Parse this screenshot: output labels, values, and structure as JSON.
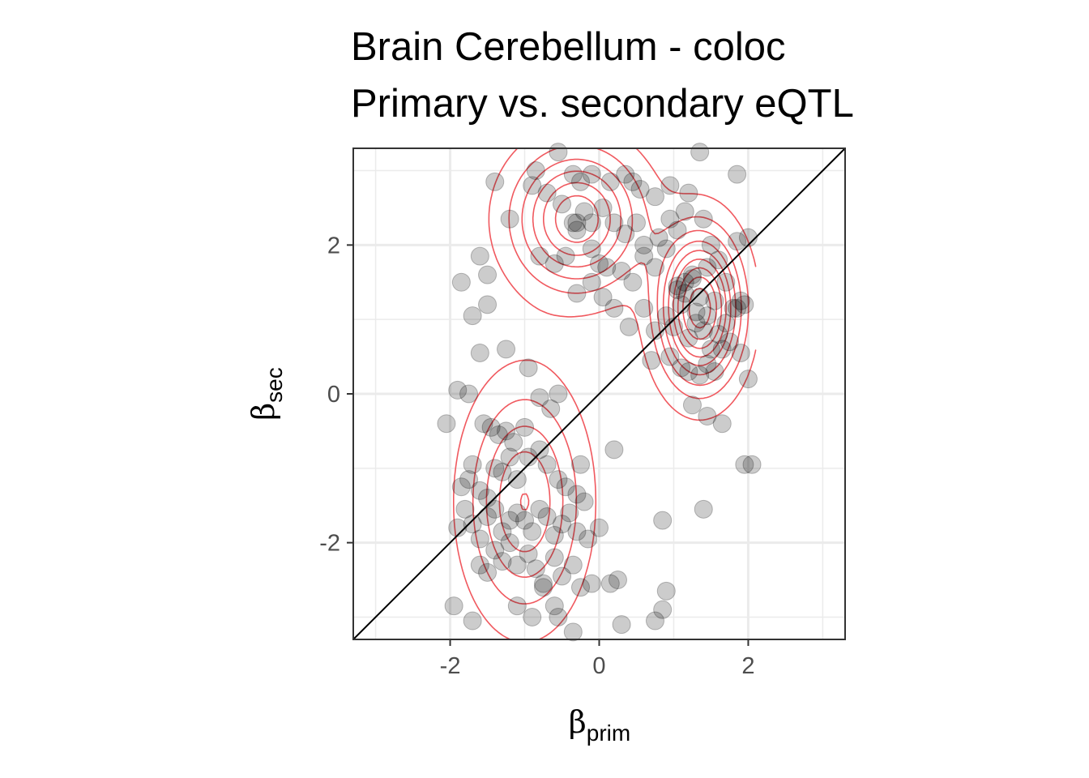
{
  "chart_data": {
    "type": "scatter",
    "title_lines": [
      "Brain Cerebellum - coloc",
      "Primary vs. secondary eQTL"
    ],
    "xlabel": {
      "symbol": "β",
      "subscript": "prim"
    },
    "ylabel": {
      "symbol": "β",
      "subscript": "sec"
    },
    "xlim": [
      -3.3,
      3.3
    ],
    "ylim": [
      -3.3,
      3.3
    ],
    "x_ticks": [
      -2,
      0,
      2
    ],
    "y_ticks": [
      -2,
      0,
      2
    ],
    "x_tick_labels": [
      "-2",
      "0",
      "2"
    ],
    "y_tick_labels": [
      "-2",
      "0",
      "2"
    ],
    "grid": true,
    "reference_line": {
      "slope": 1,
      "intercept": 0
    },
    "point_color": "#000000",
    "contour_color": "#f0595f",
    "density_modes": [
      {
        "x": -1.0,
        "y": -1.45,
        "sx": 0.48,
        "sy": 0.95
      },
      {
        "x": -0.3,
        "y": 2.35,
        "sx": 0.55,
        "sy": 0.6
      },
      {
        "x": 1.35,
        "y": 1.15,
        "sx": 0.35,
        "sy": 0.65
      }
    ],
    "points": [
      [
        -0.85,
        3.0
      ],
      [
        -0.55,
        3.25
      ],
      [
        -0.35,
        2.95
      ],
      [
        -0.25,
        2.85
      ],
      [
        -0.1,
        2.95
      ],
      [
        0.15,
        2.85
      ],
      [
        0.35,
        2.95
      ],
      [
        0.45,
        2.85
      ],
      [
        0.55,
        2.75
      ],
      [
        0.75,
        2.65
      ],
      [
        0.95,
        2.8
      ],
      [
        1.2,
        2.7
      ],
      [
        1.35,
        3.25
      ],
      [
        1.85,
        2.95
      ],
      [
        -1.4,
        2.85
      ],
      [
        -1.2,
        2.35
      ],
      [
        -0.9,
        2.8
      ],
      [
        -0.7,
        2.7
      ],
      [
        -0.5,
        2.55
      ],
      [
        -0.3,
        2.3
      ],
      [
        -0.2,
        2.45
      ],
      [
        -0.1,
        2.3
      ],
      [
        0.05,
        2.5
      ],
      [
        0.2,
        2.3
      ],
      [
        0.35,
        2.15
      ],
      [
        0.5,
        2.3
      ],
      [
        0.6,
        2.0
      ],
      [
        0.8,
        2.1
      ],
      [
        0.95,
        2.35
      ],
      [
        1.05,
        2.2
      ],
      [
        1.15,
        2.45
      ],
      [
        1.4,
        2.35
      ],
      [
        1.5,
        2.0
      ],
      [
        1.6,
        1.8
      ],
      [
        1.85,
        2.05
      ],
      [
        2.0,
        2.1
      ],
      [
        -0.35,
        2.3
      ],
      [
        -0.3,
        2.2
      ],
      [
        -0.1,
        1.95
      ],
      [
        0.0,
        1.75
      ],
      [
        0.1,
        1.7
      ],
      [
        0.3,
        1.65
      ],
      [
        0.45,
        1.5
      ],
      [
        0.6,
        1.85
      ],
      [
        0.75,
        1.7
      ],
      [
        0.9,
        1.95
      ],
      [
        1.05,
        1.45
      ],
      [
        1.15,
        1.35
      ],
      [
        1.25,
        1.55
      ],
      [
        1.3,
        1.1
      ],
      [
        1.45,
        1.7
      ],
      [
        1.55,
        1.25
      ],
      [
        1.7,
        1.5
      ],
      [
        1.8,
        1.15
      ],
      [
        1.9,
        1.25
      ],
      [
        1.95,
        1.2
      ],
      [
        0.6,
        1.15
      ],
      [
        0.75,
        0.85
      ],
      [
        0.9,
        1.05
      ],
      [
        1.0,
        0.9
      ],
      [
        1.1,
        1.2
      ],
      [
        1.2,
        0.75
      ],
      [
        1.3,
        0.95
      ],
      [
        1.4,
        0.85
      ],
      [
        1.5,
        0.6
      ],
      [
        1.6,
        0.8
      ],
      [
        1.7,
        0.95
      ],
      [
        1.85,
        1.15
      ],
      [
        1.05,
        1.4
      ],
      [
        1.15,
        1.5
      ],
      [
        1.25,
        1.6
      ],
      [
        1.35,
        1.3
      ],
      [
        1.45,
        1.05
      ],
      [
        0.95,
        0.5
      ],
      [
        1.1,
        0.35
      ],
      [
        1.2,
        0.3
      ],
      [
        1.35,
        0.25
      ],
      [
        1.45,
        0.4
      ],
      [
        1.55,
        0.3
      ],
      [
        1.65,
        0.6
      ],
      [
        1.75,
        0.7
      ],
      [
        1.9,
        0.55
      ],
      [
        2.0,
        0.2
      ],
      [
        1.25,
        -0.15
      ],
      [
        1.45,
        -0.3
      ],
      [
        1.65,
        -0.4
      ],
      [
        1.95,
        -0.95
      ],
      [
        2.05,
        -0.95
      ],
      [
        -0.8,
        1.85
      ],
      [
        -0.6,
        1.75
      ],
      [
        -0.45,
        1.85
      ],
      [
        -0.3,
        1.35
      ],
      [
        -0.1,
        1.5
      ],
      [
        0.05,
        1.3
      ],
      [
        0.2,
        1.15
      ],
      [
        0.4,
        0.9
      ],
      [
        0.7,
        0.45
      ],
      [
        -1.85,
        1.5
      ],
      [
        -1.6,
        1.85
      ],
      [
        -1.5,
        1.6
      ],
      [
        -1.7,
        1.05
      ],
      [
        -1.5,
        1.2
      ],
      [
        -1.6,
        0.55
      ],
      [
        -1.25,
        0.6
      ],
      [
        -0.95,
        0.35
      ],
      [
        -2.05,
        -0.4
      ],
      [
        -1.9,
        0.05
      ],
      [
        -1.75,
        0.0
      ],
      [
        -1.55,
        -0.4
      ],
      [
        -1.45,
        -0.45
      ],
      [
        -1.35,
        -0.55
      ],
      [
        -1.25,
        -0.5
      ],
      [
        -1.15,
        -0.65
      ],
      [
        -1.0,
        -0.45
      ],
      [
        -0.8,
        -0.05
      ],
      [
        -0.65,
        -0.2
      ],
      [
        -0.55,
        0.0
      ],
      [
        -1.85,
        -1.25
      ],
      [
        -1.75,
        -1.15
      ],
      [
        -1.7,
        -0.95
      ],
      [
        -1.6,
        -1.3
      ],
      [
        -1.5,
        -1.4
      ],
      [
        -1.4,
        -1.0
      ],
      [
        -1.3,
        -1.05
      ],
      [
        -1.2,
        -0.85
      ],
      [
        -1.1,
        -1.15
      ],
      [
        -0.95,
        -0.85
      ],
      [
        -0.8,
        -0.75
      ],
      [
        -0.7,
        -0.95
      ],
      [
        -0.55,
        -1.15
      ],
      [
        -0.45,
        -1.25
      ],
      [
        -0.3,
        -1.35
      ],
      [
        -0.2,
        -1.45
      ],
      [
        -1.9,
        -1.8
      ],
      [
        -1.8,
        -1.55
      ],
      [
        -1.7,
        -1.75
      ],
      [
        -1.6,
        -1.95
      ],
      [
        -1.5,
        -1.65
      ],
      [
        -1.4,
        -1.55
      ],
      [
        -1.3,
        -1.85
      ],
      [
        -1.2,
        -1.7
      ],
      [
        -1.1,
        -1.6
      ],
      [
        -1.0,
        -1.7
      ],
      [
        -0.9,
        -1.85
      ],
      [
        -0.8,
        -1.55
      ],
      [
        -0.7,
        -1.65
      ],
      [
        -0.6,
        -1.9
      ],
      [
        -0.5,
        -1.75
      ],
      [
        -0.4,
        -1.6
      ],
      [
        -0.3,
        -1.85
      ],
      [
        -0.15,
        -1.95
      ],
      [
        0.0,
        -1.8
      ],
      [
        -1.6,
        -2.3
      ],
      [
        -1.5,
        -2.4
      ],
      [
        -1.4,
        -2.1
      ],
      [
        -1.3,
        -2.25
      ],
      [
        -1.2,
        -2.0
      ],
      [
        -1.1,
        -2.3
      ],
      [
        -0.95,
        -2.15
      ],
      [
        -0.85,
        -2.35
      ],
      [
        -0.75,
        -2.55
      ],
      [
        -0.6,
        -2.2
      ],
      [
        -0.5,
        -2.45
      ],
      [
        -0.35,
        -2.3
      ],
      [
        -0.25,
        -2.6
      ],
      [
        -0.1,
        -2.55
      ],
      [
        0.25,
        -2.5
      ],
      [
        -1.95,
        -2.85
      ],
      [
        -1.7,
        -3.05
      ],
      [
        -1.1,
        -2.85
      ],
      [
        -0.9,
        -3.0
      ],
      [
        -0.75,
        -2.6
      ],
      [
        -0.6,
        -2.85
      ],
      [
        -0.55,
        -3.0
      ],
      [
        -0.35,
        -3.2
      ],
      [
        0.15,
        -2.55
      ],
      [
        0.3,
        -3.1
      ],
      [
        0.75,
        -3.05
      ],
      [
        0.85,
        -2.9
      ],
      [
        0.9,
        -2.65
      ],
      [
        0.85,
        -1.7
      ],
      [
        1.4,
        -1.55
      ],
      [
        0.2,
        -0.75
      ],
      [
        -0.25,
        -0.95
      ]
    ]
  }
}
